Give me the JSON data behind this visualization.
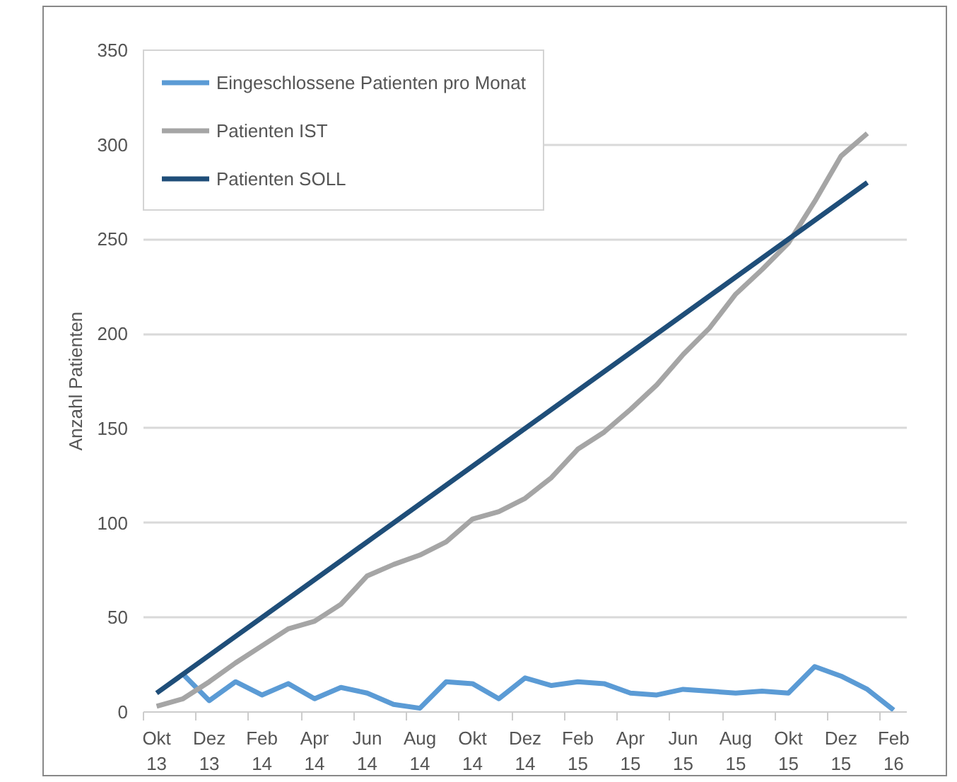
{
  "chart_data": {
    "type": "line",
    "ylabel": "Anzahl Patienten",
    "categories": [
      "Okt 13",
      null,
      "Dez 13",
      null,
      "Feb 14",
      null,
      "Apr 14",
      null,
      "Jun 14",
      null,
      "Aug 14",
      null,
      "Okt 14",
      null,
      "Dez 14",
      null,
      "Feb 15",
      null,
      "Apr 15",
      null,
      "Jun 15",
      null,
      "Aug 15",
      null,
      "Okt 15",
      null,
      "Dez 15",
      null,
      "Feb 16"
    ],
    "series": [
      {
        "name": "Eingeschlossene Patienten pro Monat",
        "color": "#5b9bd5",
        "values": [
          null,
          20,
          6,
          16,
          9,
          15,
          7,
          13,
          10,
          4,
          2,
          16,
          15,
          7,
          18,
          14,
          16,
          15,
          10,
          9,
          12,
          11,
          10,
          11,
          10,
          24,
          19,
          12,
          1
        ]
      },
      {
        "name": "Patienten IST",
        "color": "#a5a5a5",
        "values": [
          3,
          7,
          16,
          26,
          35,
          44,
          48,
          57,
          72,
          78,
          83,
          90,
          102,
          106,
          113,
          124,
          139,
          148,
          160,
          173,
          189,
          203,
          221,
          234,
          248,
          270,
          294,
          306,
          null
        ]
      },
      {
        "name": "Patienten SOLL",
        "color": "#1f4e79",
        "values": [
          10,
          20,
          30,
          40,
          50,
          60,
          70,
          80,
          90,
          100,
          110,
          120,
          130,
          140,
          150,
          160,
          170,
          180,
          190,
          200,
          210,
          220,
          230,
          240,
          250,
          260,
          270,
          280,
          null
        ]
      }
    ],
    "ylim": [
      0,
      350
    ],
    "yticks": [
      0,
      50,
      100,
      150,
      200,
      250,
      300,
      350
    ],
    "grid": "y",
    "legend": "top left",
    "line_style": "solid"
  }
}
